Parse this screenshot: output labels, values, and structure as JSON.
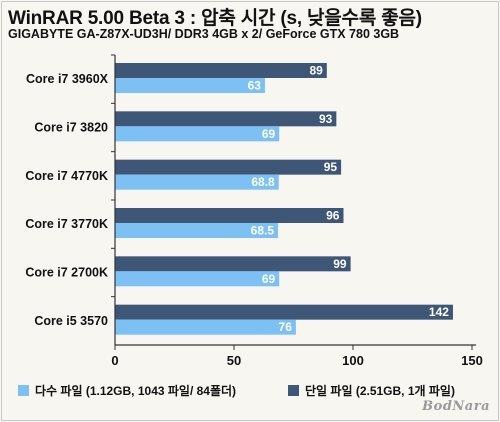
{
  "header": {
    "title": "WinRAR 5.00 Beta 3 : 압축 시간 (s, 낮을수록 좋음)",
    "subtitle": "GIGABYTE GA-Z87X-UD3H/ DDR3 4GB x 2/ GeForce GTX 780 3GB"
  },
  "watermark": "BodNara",
  "colors": {
    "single": "#3f5776",
    "multi": "#7cc0f4",
    "axis": "#333333"
  },
  "chart_data": {
    "type": "bar",
    "orientation": "horizontal",
    "categories": [
      "Core i7 3960X",
      "Core i7 3820",
      "Core i7 4770K",
      "Core i7 3770K",
      "Core i7 2700K",
      "Core i5 3570"
    ],
    "series": [
      {
        "name": "단일 파일 (2.51GB, 1개 파일)",
        "values": [
          89,
          93,
          95,
          96,
          99,
          142
        ]
      },
      {
        "name": "다수 파일 (1.12GB, 1043 파일/ 84폴더)",
        "values": [
          63,
          69,
          68.8,
          68.5,
          69,
          76
        ]
      }
    ],
    "value_labels": [
      [
        "89",
        "93",
        "95",
        "96",
        "99",
        "142"
      ],
      [
        "63",
        "69",
        "68.8",
        "68.5",
        "69",
        "76"
      ]
    ],
    "xlim": [
      0,
      150
    ],
    "xticks": [
      0,
      50,
      100,
      150
    ],
    "grid": false,
    "legend_position": "bottom"
  }
}
